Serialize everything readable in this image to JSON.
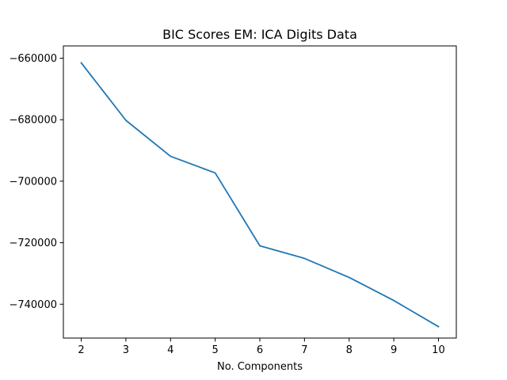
{
  "chart_data": {
    "type": "line",
    "title": "BIC Scores EM: ICA Digits Data",
    "xlabel": "No. Components",
    "ylabel": "",
    "x": [
      2,
      3,
      4,
      5,
      6,
      7,
      8,
      9,
      10
    ],
    "series": [
      {
        "values": [
          -661500,
          -680200,
          -691900,
          -697300,
          -721000,
          -725100,
          -731300,
          -738800,
          -747300
        ],
        "color": "#1f77b4"
      }
    ],
    "xlim": [
      1.6,
      10.4
    ],
    "ylim": [
      -751000,
      -656000
    ],
    "xticks": [
      2,
      3,
      4,
      5,
      6,
      7,
      8,
      9,
      10
    ],
    "yticks": [
      -660000,
      -680000,
      -700000,
      -720000,
      -740000
    ],
    "ytick_labels": [
      "−660000",
      "−680000",
      "−700000",
      "−720000",
      "−740000"
    ],
    "grid": false,
    "legend": "none"
  }
}
